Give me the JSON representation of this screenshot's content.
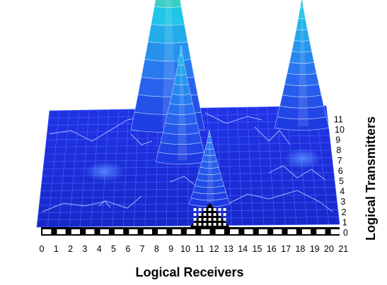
{
  "chart_data": {
    "type": "surface",
    "title": "",
    "xlabel": "Logical Receivers",
    "ylabel": "Logical Transmitters",
    "x_ticks": [
      "0",
      "1",
      "2",
      "3",
      "4",
      "5",
      "6",
      "7",
      "8",
      "9",
      "10",
      "11",
      "12",
      "13",
      "14",
      "15",
      "16",
      "17",
      "18",
      "19",
      "20",
      "21"
    ],
    "y_ticks": [
      "0",
      "1",
      "2",
      "3",
      "4",
      "5",
      "6",
      "7",
      "8",
      "9",
      "10",
      "11"
    ],
    "xlim": [
      0,
      21
    ],
    "ylim": [
      0,
      11
    ],
    "peaks": [
      {
        "receiver": 9,
        "transmitter": 9,
        "relative_height": 1.0
      },
      {
        "receiver": 10,
        "transmitter": 6,
        "relative_height": 0.55
      },
      {
        "receiver": 12,
        "transmitter": 2,
        "relative_height": 0.35
      },
      {
        "receiver": 19,
        "transmitter": 9,
        "relative_height": 0.62
      }
    ],
    "colors": {
      "base": "#1d35e0",
      "low": "#2a6cf0",
      "mid": "#20c8e8",
      "high": "#7de06a",
      "top": "#f2e21a",
      "grid": "#ffffff"
    }
  }
}
